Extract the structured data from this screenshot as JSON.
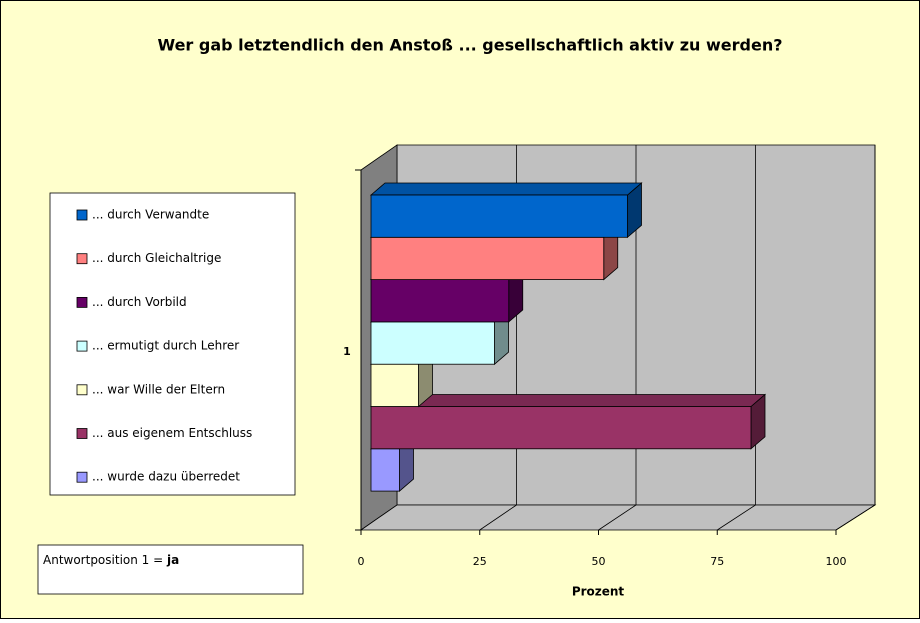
{
  "chart_data": {
    "type": "bar3d",
    "title": "Wer gab letztendlich den Anstoß ... gesellschaftlich aktiv zu werden?",
    "categories": [
      "1"
    ],
    "series": [
      {
        "name": "... durch Verwandte",
        "color": "#0066cc",
        "values": [
          54
        ]
      },
      {
        "name": "...  durch Gleichaltrige",
        "color": "#ff8080",
        "values": [
          49
        ]
      },
      {
        "name": "...  durch Vorbild",
        "color": "#660066",
        "values": [
          29
        ]
      },
      {
        "name": "...  ermutigt durch Lehrer",
        "color": "#ccffff",
        "values": [
          26
        ]
      },
      {
        "name": "...  war Wille der Eltern",
        "color": "#ffffcc",
        "values": [
          10
        ]
      },
      {
        "name": "...  aus eigenem Entschluss",
        "color": "#993366",
        "values": [
          80
        ]
      },
      {
        "name": "...  wurde dazu überredet",
        "color": "#9999ff",
        "values": [
          6
        ]
      }
    ],
    "xlabel": "Prozent",
    "xlim": [
      0,
      100
    ],
    "xticks": [
      0,
      25,
      50,
      75,
      100
    ],
    "grid": true,
    "legend": "left",
    "annotation": {
      "prefix": "Antwortposition  1 =",
      "bold": "ja"
    }
  }
}
